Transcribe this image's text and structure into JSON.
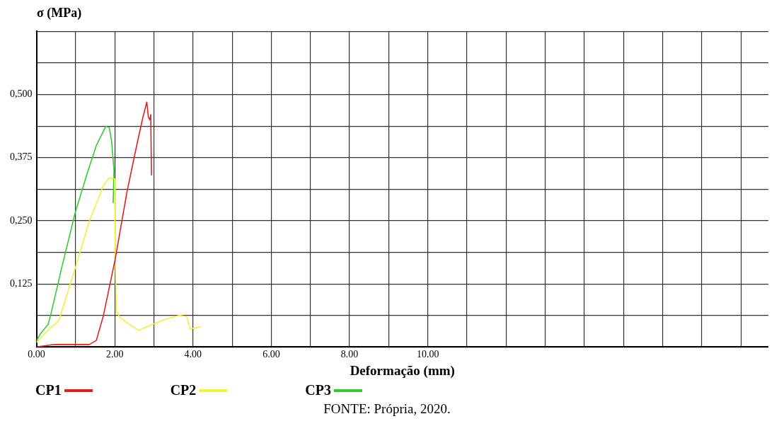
{
  "chart_data": {
    "type": "line",
    "ylabel": "σ (MPa)",
    "xlabel": "Deformação (mm)",
    "xlim": [
      0,
      18.7
    ],
    "xticks": [
      {
        "value": 0,
        "label": "0.00"
      },
      {
        "value": 1,
        "label": null
      },
      {
        "value": 2,
        "label": "2.00"
      },
      {
        "value": 3,
        "label": null
      },
      {
        "value": 4,
        "label": "4.00"
      },
      {
        "value": 5,
        "label": null
      },
      {
        "value": 6,
        "label": "6.00"
      },
      {
        "value": 7,
        "label": null
      },
      {
        "value": 8,
        "label": "8.00"
      },
      {
        "value": 9,
        "label": null
      },
      {
        "value": 10,
        "label": "10.00"
      },
      {
        "value": 11,
        "label": null
      },
      {
        "value": 12,
        "label": null
      },
      {
        "value": 13,
        "label": null
      },
      {
        "value": 14,
        "label": null
      },
      {
        "value": 15,
        "label": null
      },
      {
        "value": 16,
        "label": null
      },
      {
        "value": 17,
        "label": null
      },
      {
        "value": 18,
        "label": null
      }
    ],
    "ylim": [
      0,
      0.625
    ],
    "yticks": [
      {
        "value": 0,
        "label": null
      },
      {
        "value": 0.0625,
        "label": null
      },
      {
        "value": 0.125,
        "label": "0,125"
      },
      {
        "value": 0.1875,
        "label": null
      },
      {
        "value": 0.25,
        "label": "0,250"
      },
      {
        "value": 0.3125,
        "label": null
      },
      {
        "value": 0.375,
        "label": "0,375"
      },
      {
        "value": 0.4375,
        "label": null
      },
      {
        "value": 0.5,
        "label": "0,500"
      },
      {
        "value": 0.5625,
        "label": null
      },
      {
        "value": 0.625,
        "label": null
      }
    ],
    "grid": true,
    "legend": "bottom",
    "marker": "none",
    "line_style": "solid",
    "series": [
      {
        "name": "CP1",
        "color": "#dd2222",
        "x": [
          0,
          0.45,
          1.35,
          1.53,
          1.71,
          2.01,
          2.31,
          2.55,
          2.72,
          2.82,
          2.86,
          2.9,
          2.92,
          2.94
        ],
        "values": [
          0,
          0.005,
          0.005,
          0.013,
          0.062,
          0.173,
          0.306,
          0.395,
          0.455,
          0.485,
          0.455,
          0.45,
          0.46,
          0.34
        ]
      },
      {
        "name": "CP2",
        "color": "#f2f23a",
        "x": [
          0,
          0.33,
          0.57,
          0.99,
          1.35,
          1.71,
          1.86,
          2.0,
          2.01,
          2.04,
          2.13,
          2.37,
          2.61,
          2.97,
          3.33,
          3.66,
          3.84,
          3.93,
          4.2
        ],
        "values": [
          0.009,
          0.036,
          0.052,
          0.156,
          0.249,
          0.32,
          0.335,
          0.333,
          0.196,
          0.072,
          0.059,
          0.045,
          0.033,
          0.045,
          0.056,
          0.063,
          0.06,
          0.036,
          0.04
        ]
      },
      {
        "name": "CP3",
        "color": "#33cc33",
        "x": [
          0,
          0.09,
          0.3,
          0.36,
          0.63,
          0.99,
          1.29,
          1.53,
          1.77,
          1.86,
          1.92,
          1.98,
          1.96
        ],
        "values": [
          0.012,
          0.025,
          0.045,
          0.062,
          0.152,
          0.266,
          0.342,
          0.399,
          0.437,
          0.435,
          0.408,
          0.351,
          0.285
        ]
      }
    ],
    "annotations": [
      "FONTE: Própria, 2020."
    ]
  }
}
